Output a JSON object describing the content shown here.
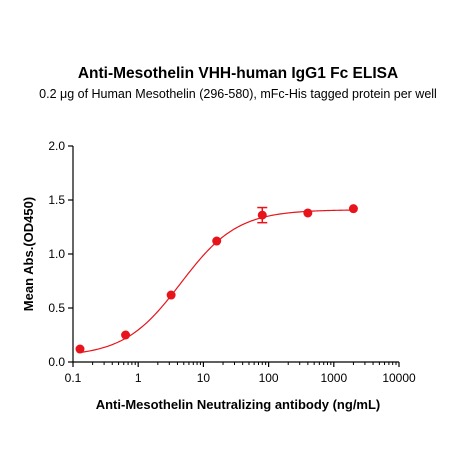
{
  "chart_data": {
    "type": "scatter",
    "title": "Anti-Mesothelin VHH-human IgG1 Fc ELISA",
    "subtitle": "0.2 μg of Human Mesothelin (296-580), mFc-His tagged protein per well",
    "xlabel": "Anti-Mesothelin Neutralizing antibody (ng/mL)",
    "ylabel": "Mean Abs.(OD450)",
    "xscale": "log",
    "xlim": [
      0.1,
      10000
    ],
    "ylim": [
      0.0,
      2.0
    ],
    "x_tick_labels": [
      "0.1",
      "1",
      "10",
      "100",
      "1000",
      "10000"
    ],
    "y_tick_labels": [
      "0.0",
      "0.5",
      "1.0",
      "1.5",
      "2.0"
    ],
    "grid": false,
    "color": "#e8141b",
    "series": [
      {
        "x": [
          0.128,
          0.64,
          3.2,
          16,
          80,
          400,
          2000
        ],
        "y": [
          0.12,
          0.25,
          0.62,
          1.12,
          1.36,
          1.38,
          1.42
        ],
        "error": [
          0.01,
          0.01,
          0.01,
          0.01,
          0.07,
          0.01,
          0.01
        ]
      }
    ],
    "fit": {
      "model": "4PL",
      "bottom": 0.05,
      "top": 1.41,
      "ec50": 4.5,
      "hill": 1.0
    }
  }
}
